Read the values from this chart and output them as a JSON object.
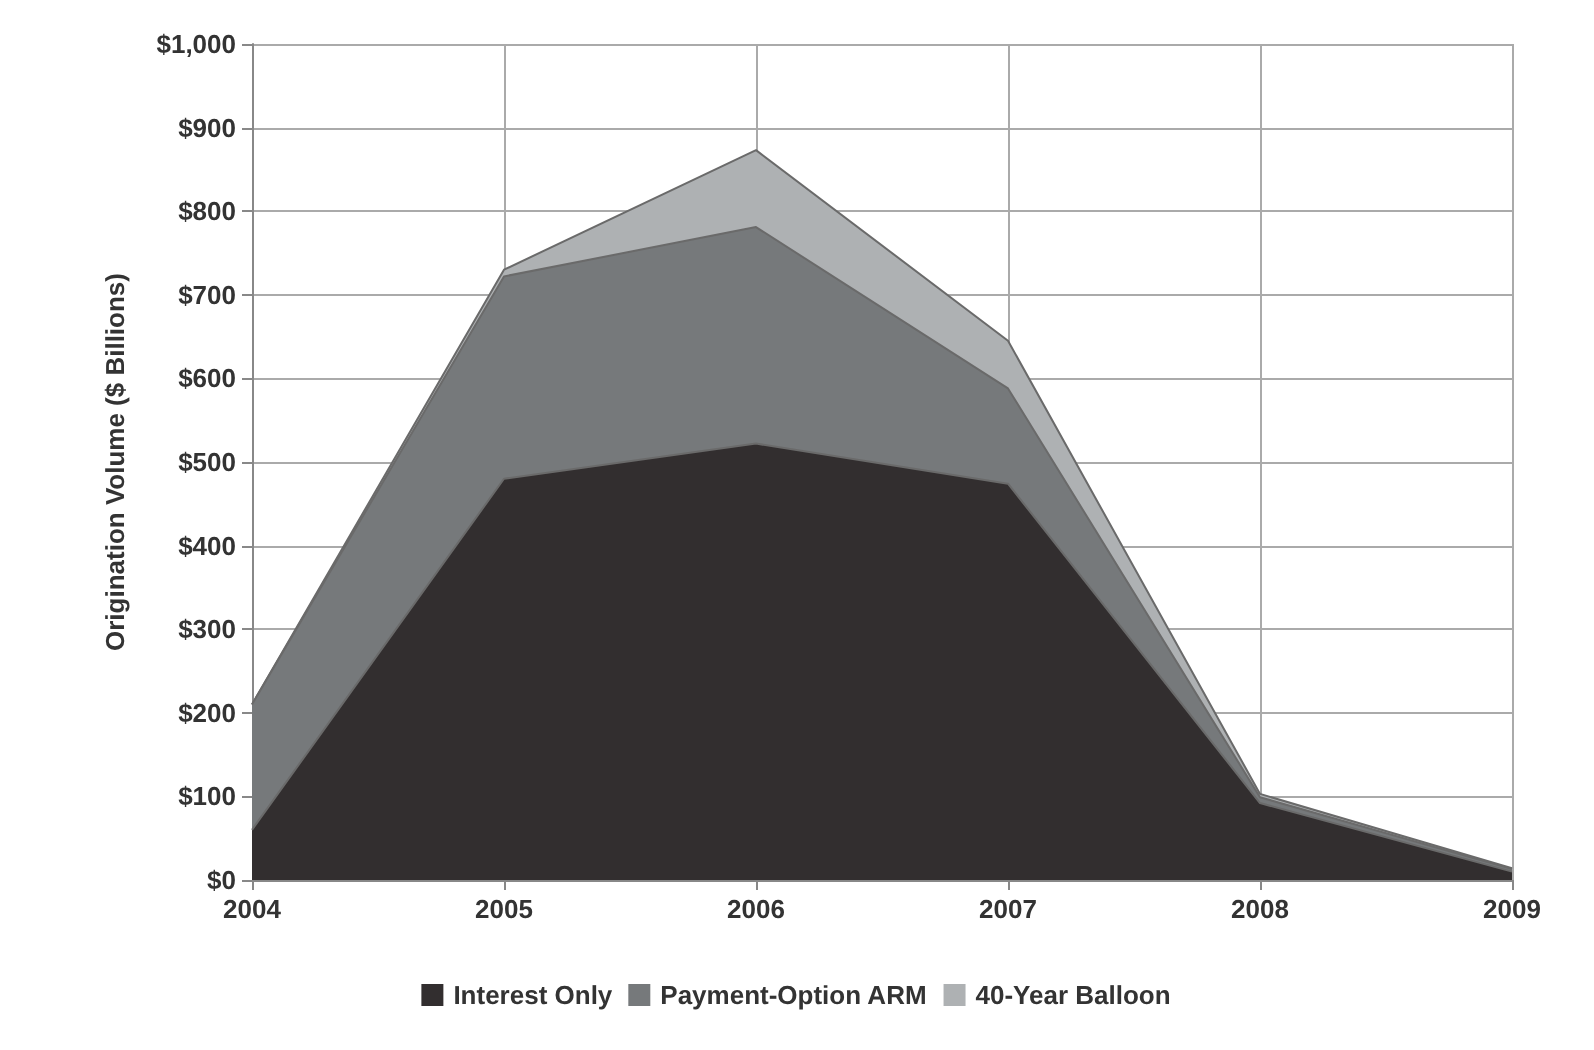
{
  "chart_data": {
    "type": "area",
    "stacked": true,
    "ylabel": "Origination Volume ($ Billions)",
    "x": [
      2004,
      2005,
      2006,
      2007,
      2008,
      2009
    ],
    "xlim": [
      2004,
      2009
    ],
    "xticks": [
      2004,
      2005,
      2006,
      2007,
      2008,
      2009
    ],
    "ylim": [
      0,
      1000
    ],
    "yticks": [
      {
        "value": 0,
        "label": "$0"
      },
      {
        "value": 100,
        "label": "$100"
      },
      {
        "value": 200,
        "label": "$200"
      },
      {
        "value": 300,
        "label": "$300"
      },
      {
        "value": 400,
        "label": "$400"
      },
      {
        "value": 500,
        "label": "$500"
      },
      {
        "value": 600,
        "label": "$600"
      },
      {
        "value": 700,
        "label": "$700"
      },
      {
        "value": 800,
        "label": "$800"
      },
      {
        "value": 900,
        "label": "$900"
      },
      {
        "value": 1000,
        "label": "$1,000"
      }
    ],
    "grid": true,
    "legend": "bottom",
    "series": [
      {
        "name": "Interest Only",
        "color": "#322e2f",
        "values": [
          60,
          480,
          522,
          474,
          92,
          10
        ]
      },
      {
        "name": "Payment-Option ARM",
        "color": "#76797b",
        "values": [
          150,
          242,
          259,
          114,
          7,
          3
        ]
      },
      {
        "name": "40-Year Balloon",
        "color": "#aeb1b3",
        "values": [
          0,
          8,
          92,
          57,
          4,
          1
        ]
      }
    ]
  }
}
